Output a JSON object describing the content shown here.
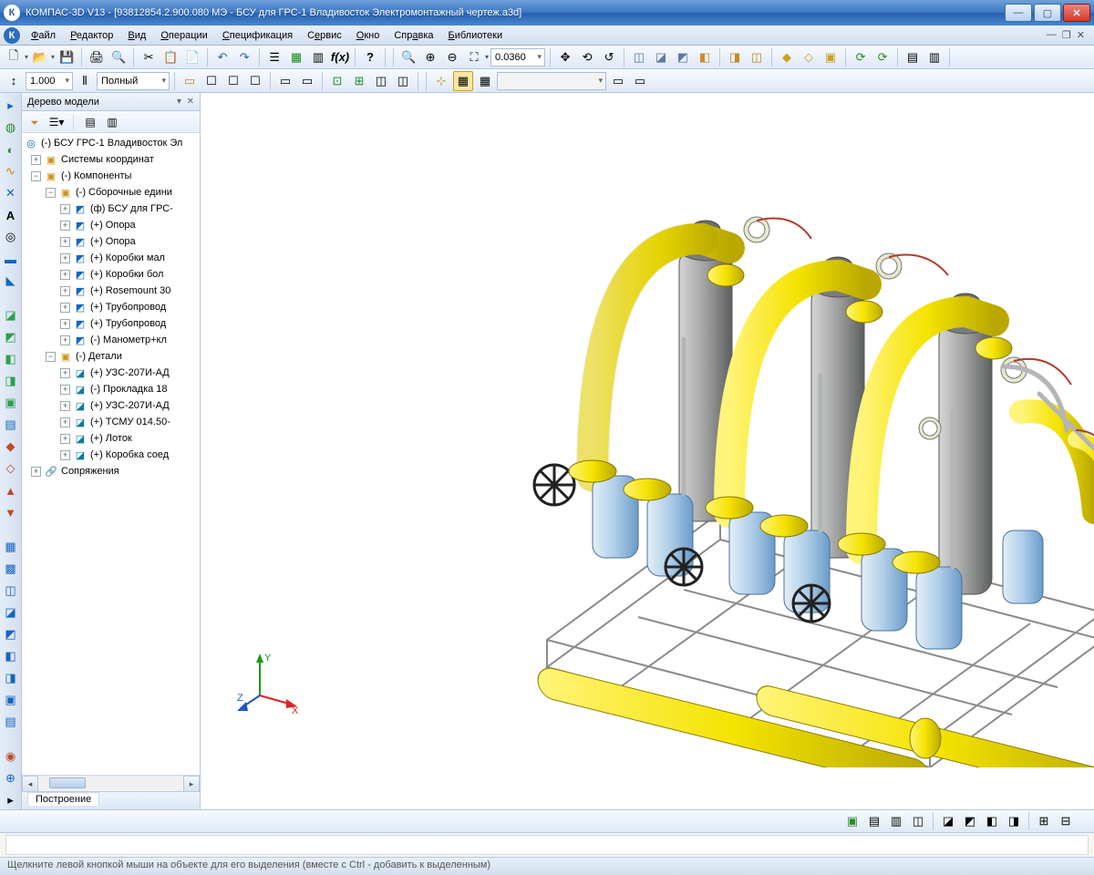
{
  "title": "КОМПАС-3D V13 - [93812854.2.900.080 МЭ - БСУ для ГРС-1 Владивосток Электромонтажный чертеж.a3d]",
  "menu": {
    "items": [
      "Файл",
      "Редактор",
      "Вид",
      "Операции",
      "Спецификация",
      "Сервис",
      "Окно",
      "Справка",
      "Библиотеки"
    ]
  },
  "zoom_field": "0.0360",
  "scale_field": "1.000",
  "style_combo": "Полный",
  "tree": {
    "title": "Дерево модели",
    "root": "(-) БСУ ГРС-1 Владивосток Эл",
    "n_coord": "Системы координат",
    "n_comp": "(-) Компоненты",
    "n_asm": "(-) Сборочные едини",
    "asm_children": [
      "(ф) БСУ для ГРС-",
      "(+) Опора",
      "(+) Опора",
      "(+) Коробки мал",
      "(+) Коробки бол",
      "(+) Rosemount 30",
      "(+) Трубопровод",
      "(+) Трубопровод",
      "(-) Манометр+кл"
    ],
    "n_parts": "(-) Детали",
    "part_children": [
      "(+) УЗС-207И-АД",
      "(-) Прокладка 18",
      "(+) УЗС-207И-АД",
      "(+) ТСМУ 014.50-",
      "(+) Лоток",
      "(+) Коробка соед"
    ],
    "n_mates": "Сопряжения",
    "footer_tab": "Построение"
  },
  "triad": {
    "x": "X",
    "y": "Y",
    "z": "Z"
  },
  "status": "Щелкните левой кнопкой мыши на объекте для его выделения (вместе с Ctrl - добавить к выделенным)",
  "colors": {
    "pipe_yellow": "#f5e300",
    "pipe_yellow_dk": "#c9b800",
    "vessel_gray": "#9fa0a0",
    "vessel_gray_dk": "#6b6d6e",
    "valve_blue": "#aecde8",
    "valve_blue_dk": "#6b9bc9",
    "frame_gray": "#c0c1c2",
    "handwheel": "#2b2b2b",
    "accent_blue": "#3a75c4"
  },
  "viewport_bg": "#ffffff"
}
